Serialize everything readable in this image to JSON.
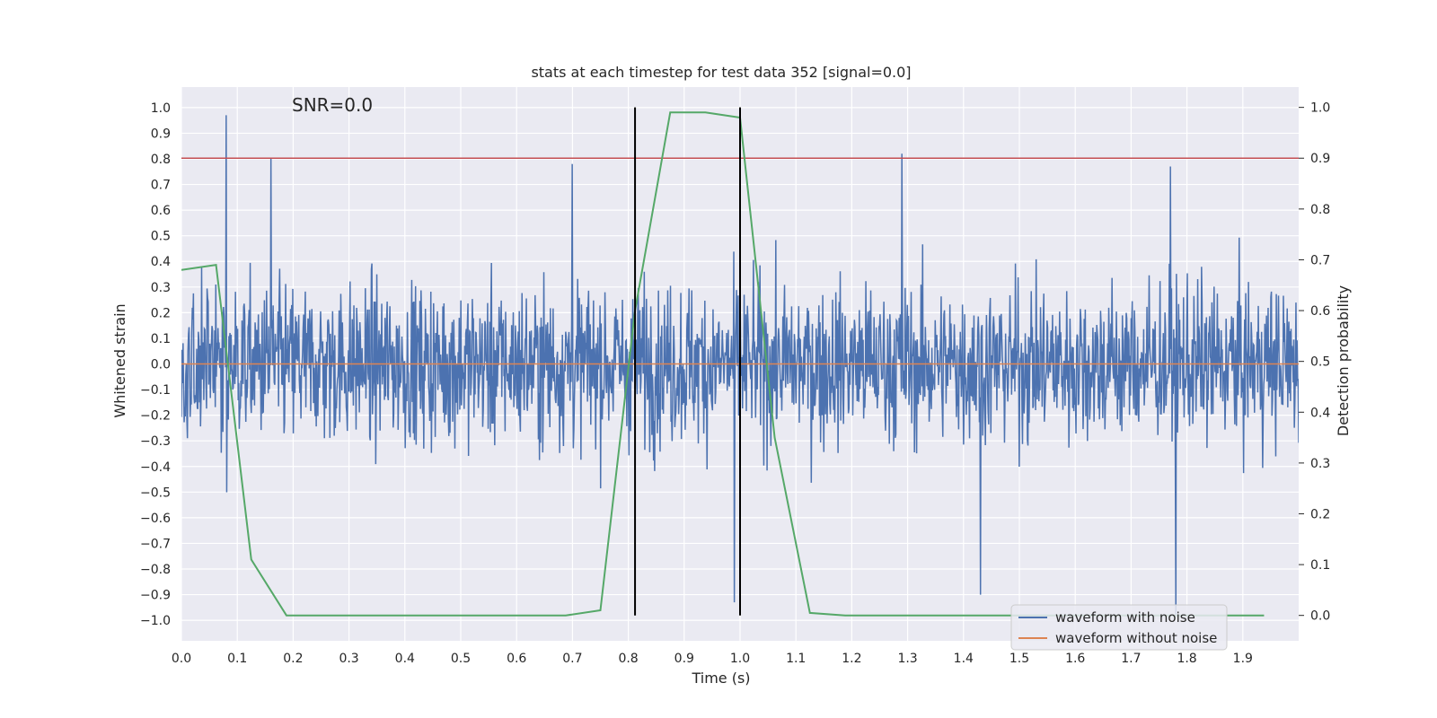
{
  "chart_data": {
    "type": "line",
    "title": "stats at each timestep for test data 352 [signal=0.0]",
    "xlabel": "Time (s)",
    "ylabel_left": "Whitened strain",
    "ylabel_right": "Detection probability",
    "xlim": [
      0.0,
      2.0
    ],
    "ylim_left": [
      -1.08,
      1.08
    ],
    "ylim_right": [
      -0.05,
      1.04
    ],
    "x_ticks": [
      "0.0",
      "0.1",
      "0.2",
      "0.3",
      "0.4",
      "0.5",
      "0.6",
      "0.7",
      "0.8",
      "0.9",
      "1.0",
      "1.1",
      "1.2",
      "1.3",
      "1.4",
      "1.5",
      "1.6",
      "1.7",
      "1.8",
      "1.9"
    ],
    "y_ticks_left": [
      "−1.0",
      "−0.9",
      "−0.8",
      "−0.7",
      "−0.6",
      "−0.5",
      "−0.4",
      "−0.3",
      "−0.2",
      "−0.1",
      "0.0",
      "0.1",
      "0.2",
      "0.3",
      "0.4",
      "0.5",
      "0.6",
      "0.7",
      "0.8",
      "0.9",
      "1.0"
    ],
    "y_ticks_right": [
      "0.0",
      "0.1",
      "0.2",
      "0.3",
      "0.4",
      "0.5",
      "0.6",
      "0.7",
      "0.8",
      "0.9",
      "1.0"
    ],
    "annotation": "SNR=0.0",
    "grid": true,
    "legend_position": "bottom-right",
    "series": [
      {
        "name": "waveform with noise",
        "axis": "left",
        "color": "#4c72b0",
        "style": "noise",
        "x_range": [
          0.0,
          2.0
        ],
        "amplitude_range": [
          -0.98,
          0.98
        ],
        "spikes": [
          {
            "x": 0.08,
            "y": 0.97
          },
          {
            "x": 0.16,
            "y": 0.8
          },
          {
            "x": 0.7,
            "y": 0.78
          },
          {
            "x": 0.99,
            "y": -0.93
          },
          {
            "x": 1.29,
            "y": 0.82
          },
          {
            "x": 1.43,
            "y": -0.9
          },
          {
            "x": 1.77,
            "y": 0.77
          },
          {
            "x": 1.78,
            "y": -0.98
          }
        ]
      },
      {
        "name": "waveform without noise",
        "axis": "left",
        "color": "#dd8452",
        "x": [
          0.0,
          2.0
        ],
        "y": [
          0.0,
          0.0
        ]
      },
      {
        "axis": "right",
        "color": "#55a868",
        "x": [
          0.0,
          0.062,
          0.125,
          0.188,
          0.25,
          0.312,
          0.375,
          0.438,
          0.5,
          0.562,
          0.625,
          0.688,
          0.75,
          0.812,
          0.875,
          0.938,
          1.0,
          1.062,
          1.125,
          1.188,
          1.25,
          1.312,
          1.375,
          1.438,
          1.5,
          1.562,
          1.625,
          1.688,
          1.75,
          1.812,
          1.875,
          1.938
        ],
        "y": [
          0.68,
          0.69,
          0.11,
          0.0,
          0.0,
          0.0,
          0.0,
          0.0,
          0.0,
          0.0,
          0.0,
          0.0,
          0.01,
          0.6,
          0.99,
          0.99,
          0.98,
          0.35,
          0.005,
          0.0,
          0.0,
          0.0,
          0.0,
          0.0,
          0.0,
          0.0,
          0.0,
          0.0,
          0.0,
          0.0,
          0.0,
          0.0
        ]
      }
    ],
    "threshold_line": {
      "axis": "right",
      "y": 0.9,
      "color": "#c44e52"
    },
    "vertical_lines": [
      {
        "x": 0.812,
        "color": "#000000"
      },
      {
        "x": 1.0,
        "color": "#000000"
      }
    ]
  }
}
